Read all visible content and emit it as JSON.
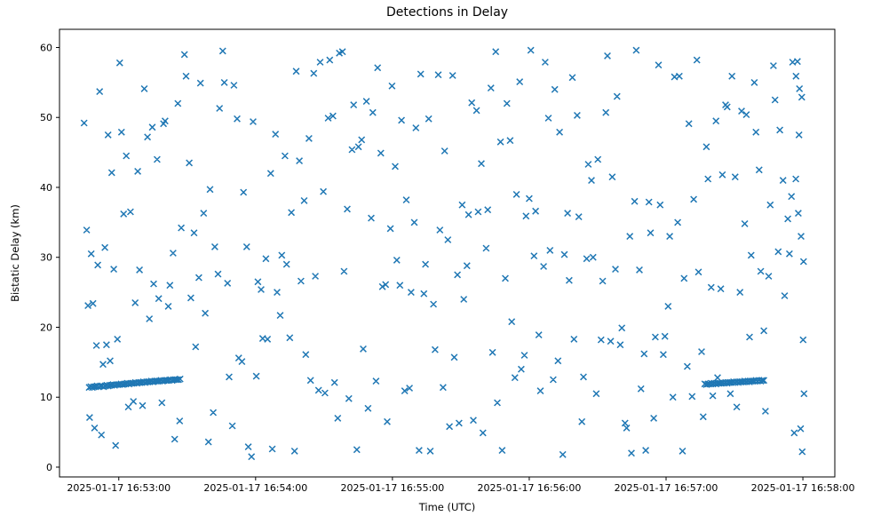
{
  "chart_data": {
    "type": "scatter",
    "title": "Detections in Delay",
    "xlabel": "Time (UTC)",
    "ylabel": "Bistatic Delay (km)",
    "marker": "x",
    "marker_color": "#1f77b4",
    "x_unit": "seconds after 2025-01-17 16:53:00 UTC",
    "xlim": [
      -26,
      314
    ],
    "ylim": [
      -1.4,
      62.6
    ],
    "x_ticks": [
      {
        "t": 0,
        "label": "2025-01-17 16:53:00"
      },
      {
        "t": 60,
        "label": "2025-01-17 16:54:00"
      },
      {
        "t": 120,
        "label": "2025-01-17 16:55:00"
      },
      {
        "t": 180,
        "label": "2025-01-17 16:56:00"
      },
      {
        "t": 240,
        "label": "2025-01-17 16:57:00"
      },
      {
        "t": 300,
        "label": "2025-01-17 16:58:00"
      }
    ],
    "y_ticks": [
      0,
      10,
      20,
      30,
      40,
      50,
      60
    ],
    "points": [
      [
        -15.2,
        49.2
      ],
      [
        -14.1,
        33.9
      ],
      [
        -13.5,
        23.1
      ],
      [
        -12.8,
        7.1
      ],
      [
        -12.1,
        30.5
      ],
      [
        -11.3,
        23.4
      ],
      [
        -10.6,
        5.6
      ],
      [
        -9.8,
        17.4
      ],
      [
        -9.2,
        28.9
      ],
      [
        -8.4,
        53.7
      ],
      [
        -7.6,
        4.6
      ],
      [
        -6.9,
        14.7
      ],
      [
        -6.1,
        31.4
      ],
      [
        -5.4,
        17.5
      ],
      [
        -4.7,
        47.5
      ],
      [
        -3.8,
        15.2
      ],
      [
        -3.1,
        42.1
      ],
      [
        -2.2,
        28.3
      ],
      [
        -1.4,
        3.1
      ],
      [
        -0.6,
        18.3
      ],
      [
        0.4,
        57.8
      ],
      [
        1.2,
        47.9
      ],
      [
        2.1,
        36.2
      ],
      [
        3.3,
        44.5
      ],
      [
        4.2,
        8.6
      ],
      [
        5.1,
        36.5
      ],
      [
        6.4,
        9.4
      ],
      [
        7.2,
        23.5
      ],
      [
        8.3,
        42.3
      ],
      [
        9.1,
        28.2
      ],
      [
        10.4,
        8.8
      ],
      [
        11.2,
        54.1
      ],
      [
        12.6,
        47.2
      ],
      [
        13.4,
        21.2
      ],
      [
        14.7,
        48.6
      ],
      [
        15.3,
        26.2
      ],
      [
        16.8,
        44.0
      ],
      [
        17.5,
        24.1
      ],
      [
        18.9,
        9.2
      ],
      [
        19.6,
        49.1
      ],
      [
        20.3,
        49.5
      ],
      [
        21.7,
        23.0
      ],
      [
        22.4,
        26.0
      ],
      [
        23.8,
        30.6
      ],
      [
        24.5,
        4.0
      ],
      [
        25.9,
        52.0
      ],
      [
        26.7,
        6.6
      ],
      [
        27.4,
        34.2
      ],
      [
        28.8,
        59.0
      ],
      [
        29.5,
        55.9
      ],
      [
        30.9,
        43.5
      ],
      [
        31.6,
        24.2
      ],
      [
        33.0,
        33.5
      ],
      [
        33.7,
        17.2
      ],
      [
        35.1,
        27.1
      ],
      [
        35.8,
        54.9
      ],
      [
        37.2,
        36.3
      ],
      [
        37.9,
        22.0
      ],
      [
        39.3,
        3.6
      ],
      [
        40.0,
        39.7
      ],
      [
        41.4,
        7.8
      ],
      [
        42.1,
        31.5
      ],
      [
        43.5,
        27.6
      ],
      [
        44.2,
        51.3
      ],
      [
        45.6,
        59.5
      ],
      [
        46.3,
        55.0
      ],
      [
        47.7,
        26.3
      ],
      [
        48.4,
        12.9
      ],
      [
        49.8,
        5.9
      ],
      [
        50.5,
        54.6
      ],
      [
        51.9,
        49.8
      ],
      [
        52.6,
        15.6
      ],
      [
        54.0,
        15.1
      ],
      [
        54.7,
        39.3
      ],
      [
        56.1,
        31.5
      ],
      [
        56.8,
        2.9
      ],
      [
        58.2,
        1.5
      ],
      [
        58.9,
        49.4
      ],
      [
        60.3,
        13.0
      ],
      [
        61.0,
        26.5
      ],
      [
        62.4,
        25.4
      ],
      [
        63.1,
        18.4
      ],
      [
        64.5,
        29.8
      ],
      [
        65.2,
        18.3
      ],
      [
        66.6,
        42.0
      ],
      [
        67.3,
        2.6
      ],
      [
        68.7,
        47.6
      ],
      [
        69.4,
        25.0
      ],
      [
        70.8,
        21.7
      ],
      [
        71.5,
        30.3
      ],
      [
        72.9,
        44.5
      ],
      [
        73.6,
        29.0
      ],
      [
        75.0,
        18.5
      ],
      [
        75.7,
        36.4
      ],
      [
        77.1,
        2.3
      ],
      [
        77.8,
        56.6
      ],
      [
        79.2,
        43.8
      ],
      [
        79.9,
        26.6
      ],
      [
        81.3,
        38.1
      ],
      [
        82.0,
        16.1
      ],
      [
        83.4,
        47.0
      ],
      [
        84.1,
        12.4
      ],
      [
        85.5,
        56.3
      ],
      [
        86.2,
        27.3
      ],
      [
        87.6,
        11.0
      ],
      [
        88.3,
        57.9
      ],
      [
        89.7,
        39.4
      ],
      [
        90.4,
        10.6
      ],
      [
        91.8,
        49.9
      ],
      [
        92.5,
        58.2
      ],
      [
        93.9,
        50.2
      ],
      [
        94.6,
        12.1
      ],
      [
        96.0,
        7.0
      ],
      [
        96.7,
        59.2
      ],
      [
        98.1,
        59.4
      ],
      [
        98.8,
        28.0
      ],
      [
        100.2,
        36.9
      ],
      [
        100.9,
        9.8
      ],
      [
        102.3,
        45.4
      ],
      [
        103.0,
        51.8
      ],
      [
        104.4,
        2.5
      ],
      [
        105.1,
        45.8
      ],
      [
        106.5,
        46.8
      ],
      [
        107.2,
        16.9
      ],
      [
        108.6,
        52.3
      ],
      [
        109.3,
        8.4
      ],
      [
        110.7,
        35.6
      ],
      [
        111.4,
        50.7
      ],
      [
        112.8,
        12.3
      ],
      [
        113.5,
        57.1
      ],
      [
        114.9,
        44.9
      ],
      [
        115.6,
        25.8
      ],
      [
        117.0,
        26.1
      ],
      [
        117.7,
        6.5
      ],
      [
        119.1,
        34.1
      ],
      [
        119.8,
        54.5
      ],
      [
        121.2,
        43.0
      ],
      [
        121.9,
        29.6
      ],
      [
        123.3,
        26.0
      ],
      [
        124.0,
        49.6
      ],
      [
        125.4,
        10.9
      ],
      [
        126.1,
        38.2
      ],
      [
        127.5,
        11.3
      ],
      [
        128.2,
        25.0
      ],
      [
        129.6,
        35.0
      ],
      [
        130.3,
        48.5
      ],
      [
        131.7,
        2.4
      ],
      [
        132.4,
        56.2
      ],
      [
        133.8,
        24.8
      ],
      [
        134.5,
        29.0
      ],
      [
        135.9,
        49.8
      ],
      [
        136.6,
        2.3
      ],
      [
        138.0,
        23.3
      ],
      [
        138.7,
        16.8
      ],
      [
        140.1,
        56.1
      ],
      [
        140.8,
        33.9
      ],
      [
        142.2,
        11.4
      ],
      [
        142.9,
        45.2
      ],
      [
        144.3,
        32.5
      ],
      [
        145.0,
        5.8
      ],
      [
        146.4,
        56.0
      ],
      [
        147.1,
        15.7
      ],
      [
        148.5,
        27.5
      ],
      [
        149.2,
        6.3
      ],
      [
        150.6,
        37.5
      ],
      [
        151.3,
        24.0
      ],
      [
        152.7,
        28.8
      ],
      [
        153.4,
        36.1
      ],
      [
        154.8,
        52.1
      ],
      [
        155.5,
        6.7
      ],
      [
        156.9,
        51.0
      ],
      [
        157.6,
        36.5
      ],
      [
        159.0,
        43.4
      ],
      [
        159.7,
        4.9
      ],
      [
        161.1,
        31.3
      ],
      [
        161.8,
        36.8
      ],
      [
        163.2,
        54.2
      ],
      [
        163.9,
        16.4
      ],
      [
        165.3,
        59.4
      ],
      [
        166.0,
        9.2
      ],
      [
        167.4,
        46.5
      ],
      [
        168.1,
        2.4
      ],
      [
        169.5,
        27.0
      ],
      [
        170.2,
        52.0
      ],
      [
        171.6,
        46.7
      ],
      [
        172.3,
        20.8
      ],
      [
        173.7,
        12.8
      ],
      [
        174.4,
        39.0
      ],
      [
        175.8,
        55.1
      ],
      [
        176.5,
        14.0
      ],
      [
        177.9,
        16.0
      ],
      [
        178.6,
        35.9
      ],
      [
        180.0,
        38.4
      ],
      [
        180.7,
        59.6
      ],
      [
        182.1,
        30.2
      ],
      [
        182.8,
        36.6
      ],
      [
        184.2,
        18.9
      ],
      [
        184.9,
        10.9
      ],
      [
        186.3,
        28.7
      ],
      [
        187.0,
        57.9
      ],
      [
        188.4,
        49.9
      ],
      [
        189.1,
        31.0
      ],
      [
        190.5,
        12.5
      ],
      [
        191.2,
        54.0
      ],
      [
        192.6,
        15.2
      ],
      [
        193.3,
        47.9
      ],
      [
        194.7,
        1.8
      ],
      [
        195.4,
        30.4
      ],
      [
        196.8,
        36.3
      ],
      [
        197.5,
        26.7
      ],
      [
        198.9,
        55.7
      ],
      [
        199.6,
        18.3
      ],
      [
        201.0,
        50.3
      ],
      [
        201.7,
        35.8
      ],
      [
        203.1,
        6.5
      ],
      [
        203.8,
        12.9
      ],
      [
        205.2,
        29.8
      ],
      [
        205.9,
        43.3
      ],
      [
        207.3,
        41.0
      ],
      [
        208.0,
        30.0
      ],
      [
        209.4,
        10.5
      ],
      [
        210.1,
        44.0
      ],
      [
        211.5,
        18.2
      ],
      [
        212.2,
        26.6
      ],
      [
        213.6,
        50.7
      ],
      [
        214.3,
        58.8
      ],
      [
        215.7,
        18.0
      ],
      [
        216.4,
        41.5
      ],
      [
        217.8,
        28.3
      ],
      [
        218.5,
        53.0
      ],
      [
        219.9,
        17.5
      ],
      [
        220.6,
        19.9
      ],
      [
        222.0,
        6.3
      ],
      [
        222.7,
        5.6
      ],
      [
        224.1,
        33.0
      ],
      [
        224.8,
        2.0
      ],
      [
        226.2,
        38.0
      ],
      [
        226.9,
        59.6
      ],
      [
        228.3,
        28.2
      ],
      [
        229.0,
        11.2
      ],
      [
        230.4,
        16.2
      ],
      [
        231.1,
        2.4
      ],
      [
        232.5,
        37.9
      ],
      [
        233.2,
        33.5
      ],
      [
        234.6,
        7.0
      ],
      [
        235.3,
        18.6
      ],
      [
        236.7,
        57.5
      ],
      [
        237.4,
        37.5
      ],
      [
        238.8,
        16.1
      ],
      [
        239.5,
        18.7
      ],
      [
        240.9,
        23.0
      ],
      [
        241.6,
        33.0
      ],
      [
        243.0,
        10.0
      ],
      [
        243.7,
        55.8
      ],
      [
        245.1,
        35.0
      ],
      [
        245.8,
        55.9
      ],
      [
        247.2,
        2.3
      ],
      [
        247.9,
        27.0
      ],
      [
        249.3,
        14.4
      ],
      [
        250.0,
        49.1
      ],
      [
        251.4,
        10.1
      ],
      [
        252.1,
        38.3
      ],
      [
        253.5,
        58.2
      ],
      [
        254.2,
        27.9
      ],
      [
        255.6,
        16.5
      ],
      [
        256.3,
        7.2
      ],
      [
        257.7,
        45.8
      ],
      [
        258.4,
        41.2
      ],
      [
        259.8,
        25.7
      ],
      [
        260.5,
        10.2
      ],
      [
        261.9,
        49.5
      ],
      [
        262.6,
        12.8
      ],
      [
        264.0,
        25.5
      ],
      [
        264.7,
        41.8
      ],
      [
        266.1,
        51.8
      ],
      [
        266.8,
        51.5
      ],
      [
        268.2,
        10.5
      ],
      [
        268.9,
        55.9
      ],
      [
        270.3,
        41.5
      ],
      [
        271.0,
        8.6
      ],
      [
        272.4,
        25.0
      ],
      [
        273.1,
        50.9
      ],
      [
        274.5,
        34.8
      ],
      [
        275.2,
        50.4
      ],
      [
        276.6,
        18.6
      ],
      [
        277.3,
        30.3
      ],
      [
        278.7,
        55.0
      ],
      [
        279.4,
        47.9
      ],
      [
        280.8,
        42.5
      ],
      [
        281.5,
        28.0
      ],
      [
        282.9,
        19.5
      ],
      [
        283.6,
        8.0
      ],
      [
        285.0,
        27.3
      ],
      [
        285.7,
        37.5
      ],
      [
        287.1,
        57.4
      ],
      [
        287.8,
        52.5
      ],
      [
        289.2,
        30.8
      ],
      [
        289.9,
        48.2
      ],
      [
        291.3,
        41.0
      ],
      [
        292.0,
        24.5
      ],
      [
        293.4,
        35.5
      ],
      [
        294.1,
        30.5
      ],
      [
        295.5,
        57.9
      ],
      [
        296.2,
        4.9
      ],
      [
        297.6,
        58.0
      ],
      [
        298.3,
        47.5
      ],
      [
        299.0,
        5.5
      ],
      [
        299.7,
        2.2
      ],
      [
        296.9,
        41.2
      ],
      [
        298.0,
        36.3
      ],
      [
        299.2,
        33.0
      ],
      [
        300.1,
        18.2
      ],
      [
        300.5,
        10.5
      ],
      [
        297.0,
        55.9
      ],
      [
        298.5,
        54.1
      ],
      [
        299.5,
        52.9
      ],
      [
        300.3,
        29.4
      ],
      [
        295.0,
        38.7
      ],
      [
        -13.0,
        11.4
      ],
      [
        -12.3,
        11.5
      ],
      [
        -11.6,
        11.4
      ],
      [
        -10.9,
        11.5
      ],
      [
        -10.2,
        11.5
      ],
      [
        -9.5,
        11.6
      ],
      [
        -8.8,
        11.5
      ],
      [
        -8.1,
        11.6
      ],
      [
        -7.4,
        11.6
      ],
      [
        -6.7,
        11.5
      ],
      [
        -6.0,
        11.6
      ],
      [
        -5.3,
        11.7
      ],
      [
        -4.6,
        11.6
      ],
      [
        -3.9,
        11.7
      ],
      [
        -3.2,
        11.7
      ],
      [
        -2.5,
        11.8
      ],
      [
        -1.8,
        11.7
      ],
      [
        -1.1,
        11.8
      ],
      [
        -0.4,
        11.8
      ],
      [
        0.3,
        11.8
      ],
      [
        1.0,
        11.9
      ],
      [
        1.7,
        11.8
      ],
      [
        2.4,
        11.9
      ],
      [
        3.1,
        11.9
      ],
      [
        3.8,
        12.0
      ],
      [
        4.5,
        11.9
      ],
      [
        5.2,
        12.0
      ],
      [
        5.9,
        12.0
      ],
      [
        6.6,
        12.0
      ],
      [
        7.3,
        12.1
      ],
      [
        8.0,
        12.0
      ],
      [
        8.7,
        12.1
      ],
      [
        9.4,
        12.1
      ],
      [
        10.1,
        12.1
      ],
      [
        10.8,
        12.2
      ],
      [
        11.5,
        12.1
      ],
      [
        12.2,
        12.2
      ],
      [
        12.9,
        12.2
      ],
      [
        13.6,
        12.2
      ],
      [
        14.3,
        12.3
      ],
      [
        15.0,
        12.2
      ],
      [
        15.7,
        12.3
      ],
      [
        16.4,
        12.3
      ],
      [
        17.1,
        12.3
      ],
      [
        17.8,
        12.3
      ],
      [
        18.5,
        12.4
      ],
      [
        19.2,
        12.3
      ],
      [
        19.9,
        12.4
      ],
      [
        20.6,
        12.4
      ],
      [
        21.3,
        12.4
      ],
      [
        22.0,
        12.4
      ],
      [
        22.7,
        12.5
      ],
      [
        23.4,
        12.4
      ],
      [
        24.1,
        12.5
      ],
      [
        24.8,
        12.5
      ],
      [
        25.5,
        12.5
      ],
      [
        26.2,
        12.5
      ],
      [
        26.9,
        12.6
      ],
      [
        257.0,
        11.9
      ],
      [
        257.7,
        11.8
      ],
      [
        258.4,
        11.9
      ],
      [
        259.1,
        11.9
      ],
      [
        259.8,
        12.0
      ],
      [
        260.5,
        11.9
      ],
      [
        261.2,
        12.0
      ],
      [
        261.9,
        11.9
      ],
      [
        262.6,
        12.0
      ],
      [
        263.3,
        12.0
      ],
      [
        264.0,
        12.0
      ],
      [
        264.7,
        12.1
      ],
      [
        265.4,
        12.0
      ],
      [
        266.1,
        12.1
      ],
      [
        266.8,
        12.0
      ],
      [
        267.5,
        12.1
      ],
      [
        268.2,
        12.1
      ],
      [
        268.9,
        12.1
      ],
      [
        269.6,
        12.2
      ],
      [
        270.3,
        12.1
      ],
      [
        271.0,
        12.2
      ],
      [
        271.7,
        12.1
      ],
      [
        272.4,
        12.2
      ],
      [
        273.1,
        12.2
      ],
      [
        273.8,
        12.2
      ],
      [
        274.5,
        12.3
      ],
      [
        275.2,
        12.2
      ],
      [
        275.9,
        12.3
      ],
      [
        276.6,
        12.2
      ],
      [
        277.3,
        12.3
      ],
      [
        278.0,
        12.3
      ],
      [
        278.7,
        12.3
      ],
      [
        279.4,
        12.4
      ],
      [
        280.1,
        12.3
      ],
      [
        280.8,
        12.4
      ],
      [
        281.5,
        12.3
      ],
      [
        282.2,
        12.4
      ],
      [
        282.9,
        12.4
      ]
    ]
  }
}
